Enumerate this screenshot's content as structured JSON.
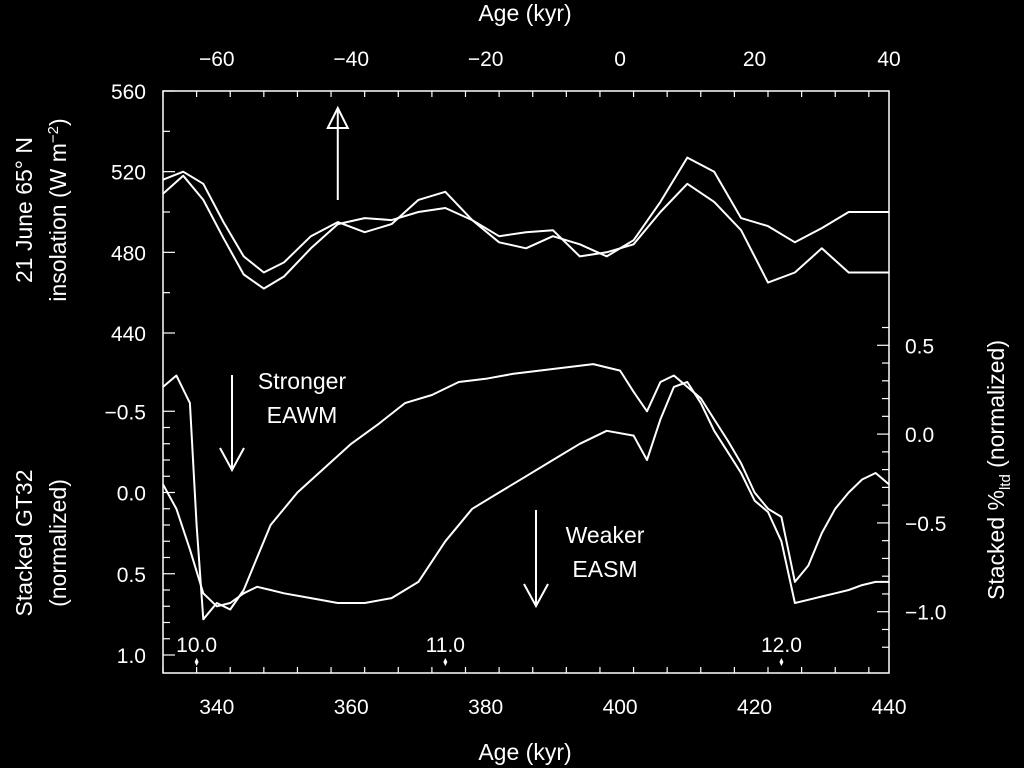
{
  "chart_data": {
    "type": "line",
    "title": "",
    "colors": {
      "background": "#000000",
      "foreground": "#ffffff"
    },
    "grid": false,
    "x_bottom": {
      "label": "Age (kyr)",
      "range": [
        332,
        440
      ],
      "ticks": [
        340,
        360,
        380,
        400,
        420,
        440
      ]
    },
    "x_top": {
      "label": "Age (kyr)",
      "range": [
        -68,
        40
      ],
      "ticks": [
        -60,
        -40,
        -20,
        0,
        20,
        40
      ]
    },
    "y_insolation": {
      "label_line1": "21 June 65° N",
      "label_line2_pre": "insolation (W m",
      "label_line2_sup": "−2",
      "label_line2_post": ")",
      "range": [
        440,
        560
      ],
      "ticks": [
        {
          "value": 440,
          "label": "440"
        },
        {
          "value": 480,
          "label": "480"
        },
        {
          "value": 520,
          "label": "520"
        },
        {
          "value": 560,
          "label": "560"
        }
      ]
    },
    "y_gt32": {
      "label_line1": "Stacked GT32",
      "label_line2": "(normalized)",
      "reversed": true,
      "range": [
        -1.0,
        1.0
      ],
      "ticks": [
        {
          "value": -0.5,
          "label": "−0.5"
        },
        {
          "value": 0.0,
          "label": "0.0"
        },
        {
          "value": 0.5,
          "label": "0.5"
        },
        {
          "value": 1.0,
          "label": "1.0"
        }
      ]
    },
    "y_ltd": {
      "label_pre": "Stacked %",
      "label_sub": "ltd",
      "label_post": " (normalized)",
      "range": [
        -1.3,
        0.8
      ],
      "ticks": [
        {
          "value": 0.5,
          "label": "0.5"
        },
        {
          "value": 0.0,
          "label": "0.0"
        },
        {
          "value": -0.5,
          "label": "−0.5"
        },
        {
          "value": -1.0,
          "label": "−1.0"
        }
      ]
    },
    "event_markers": [
      {
        "x": 337,
        "label": "10.0"
      },
      {
        "x": 374,
        "label": "11.0"
      },
      {
        "x": 424,
        "label": "12.0"
      }
    ],
    "annotations": {
      "top_arrow_x": 358,
      "stronger_line1": "Stronger",
      "stronger_line2": "EAWM",
      "weaker_line1": "Weaker",
      "weaker_line2": "EASM"
    },
    "series": [
      {
        "axis": "insolation",
        "x": [
          332,
          335,
          338,
          341,
          344,
          347,
          350,
          354,
          358,
          362,
          366,
          370,
          374,
          378,
          382,
          386,
          390,
          394,
          398,
          402,
          406,
          410,
          414,
          418,
          422,
          426,
          430,
          434,
          438,
          440
        ],
        "values": [
          509,
          518,
          506,
          487,
          469,
          462,
          468,
          482,
          494,
          497,
          496,
          500,
          502,
          496,
          488,
          490,
          491,
          478,
          480,
          484,
          500,
          514,
          505,
          491,
          465,
          470,
          482,
          470,
          470,
          470
        ]
      },
      {
        "axis": "insolation",
        "x": [
          332,
          335,
          338,
          341,
          344,
          347,
          350,
          354,
          358,
          362,
          366,
          370,
          374,
          378,
          382,
          386,
          390,
          394,
          398,
          402,
          406,
          410,
          414,
          418,
          422,
          426,
          430,
          434,
          438,
          440
        ],
        "values": [
          516,
          520,
          514,
          495,
          478,
          470,
          475,
          488,
          495,
          490,
          494,
          506,
          510,
          496,
          485,
          482,
          488,
          484,
          478,
          486,
          505,
          527,
          520,
          497,
          493,
          485,
          492,
          500,
          500,
          500
        ]
      },
      {
        "axis": "gt32",
        "x": [
          332,
          334,
          336,
          337,
          338,
          340,
          342,
          344,
          346,
          348,
          350,
          352,
          356,
          360,
          364,
          368,
          372,
          376,
          380,
          384,
          388,
          392,
          396,
          400,
          402,
          404,
          406,
          408,
          410,
          412,
          414,
          416,
          418,
          420,
          422,
          424,
          426,
          428,
          430,
          432,
          434,
          436,
          438,
          440
        ],
        "values": [
          -0.65,
          -0.72,
          -0.55,
          0.2,
          0.78,
          0.68,
          0.72,
          0.6,
          0.4,
          0.2,
          0.1,
          0.0,
          -0.15,
          -0.3,
          -0.42,
          -0.55,
          -0.6,
          -0.68,
          -0.7,
          -0.73,
          -0.75,
          -0.77,
          -0.79,
          -0.75,
          -0.62,
          -0.5,
          -0.68,
          -0.72,
          -0.65,
          -0.58,
          -0.45,
          -0.32,
          -0.18,
          0.0,
          0.1,
          0.15,
          0.55,
          0.45,
          0.25,
          0.1,
          0.0,
          -0.08,
          -0.12,
          -0.05
        ]
      },
      {
        "axis": "gt32",
        "x": [
          332,
          334,
          336,
          338,
          340,
          342,
          344,
          346,
          348,
          350,
          354,
          358,
          362,
          366,
          370,
          374,
          378,
          382,
          386,
          390,
          394,
          398,
          402,
          404,
          406,
          408,
          410,
          412,
          414,
          416,
          418,
          420,
          422,
          424,
          426,
          428,
          430,
          432,
          434,
          436,
          438,
          440
        ],
        "values": [
          -0.05,
          0.1,
          0.35,
          0.62,
          0.7,
          0.68,
          0.62,
          0.58,
          0.6,
          0.62,
          0.65,
          0.68,
          0.68,
          0.65,
          0.55,
          0.3,
          0.1,
          0.0,
          -0.1,
          -0.2,
          -0.3,
          -0.38,
          -0.35,
          -0.2,
          -0.45,
          -0.65,
          -0.68,
          -0.55,
          -0.38,
          -0.25,
          -0.12,
          0.05,
          0.12,
          0.3,
          0.68,
          0.66,
          0.64,
          0.62,
          0.6,
          0.57,
          0.55,
          0.55
        ]
      }
    ]
  }
}
